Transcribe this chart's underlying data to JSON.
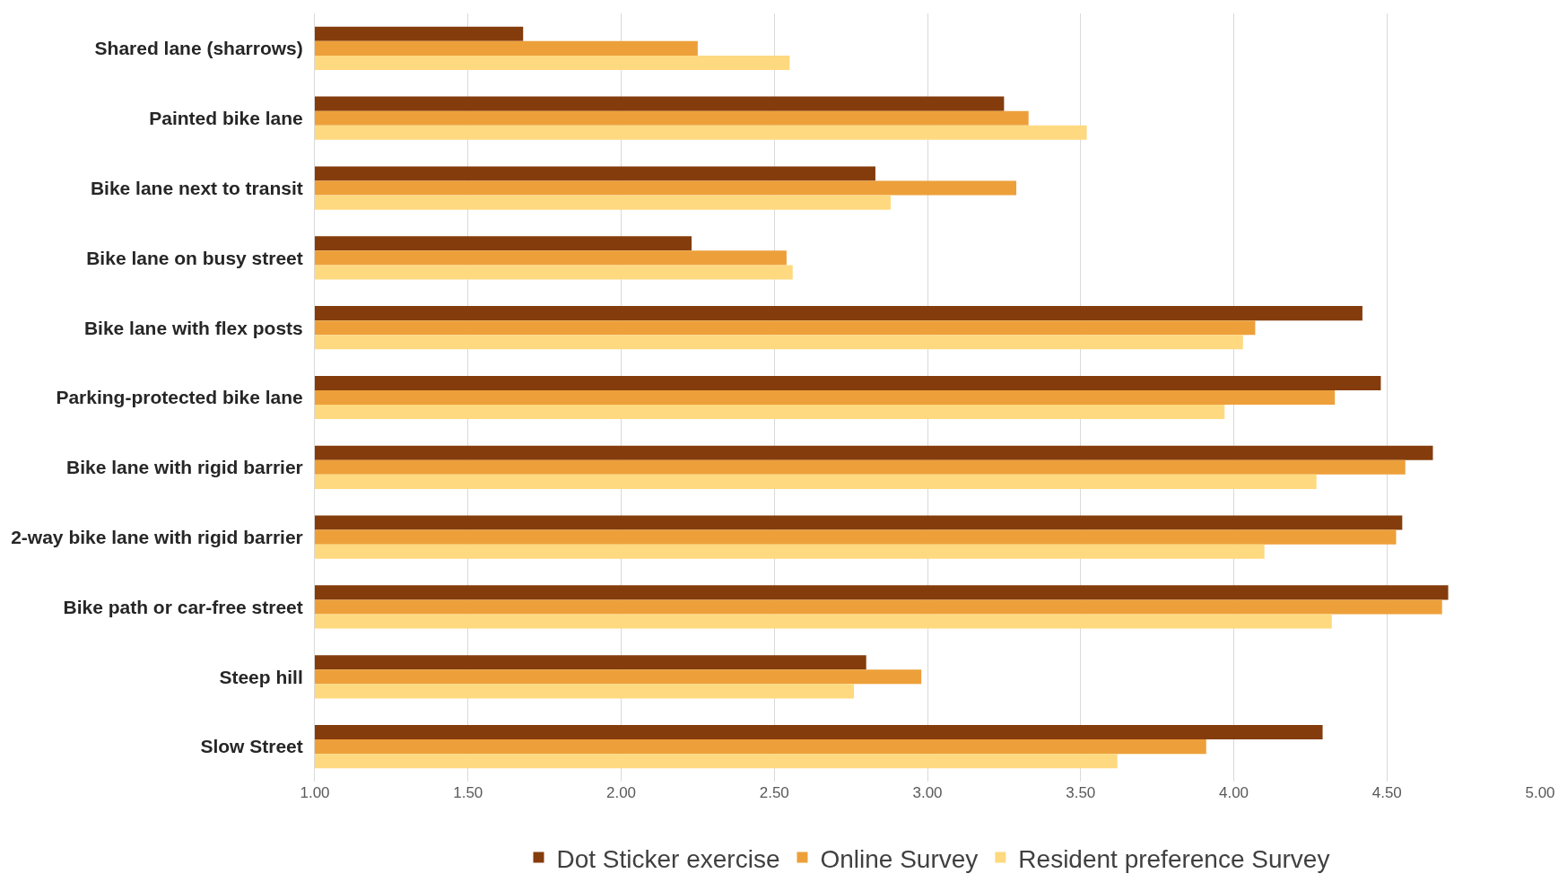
{
  "chart_data": {
    "type": "bar",
    "orientation": "horizontal",
    "categories": [
      "Shared lane (sharrows)",
      "Painted bike lane",
      "Bike lane next to transit",
      "Bike lane on busy street",
      "Bike lane with flex posts",
      "Parking-protected bike lane",
      "Bike lane with rigid barrier",
      "2-way bike lane with rigid barrier",
      "Bike path or car-free street",
      "Steep hill",
      "Slow Street"
    ],
    "series": [
      {
        "name": "Dot Sticker exercise",
        "color": "#843c0c",
        "values": [
          1.68,
          3.25,
          2.83,
          2.23,
          4.42,
          4.48,
          4.65,
          4.55,
          4.7,
          2.8,
          4.29
        ]
      },
      {
        "name": "Online Survey",
        "color": "#eda03a",
        "values": [
          2.25,
          3.33,
          3.29,
          2.54,
          4.07,
          4.33,
          4.56,
          4.53,
          4.68,
          2.98,
          3.91
        ]
      },
      {
        "name": "Resident preference Survey",
        "color": "#ffd97f",
        "values": [
          2.55,
          3.52,
          2.88,
          2.56,
          4.03,
          3.97,
          4.27,
          4.1,
          4.32,
          2.76,
          3.62
        ]
      }
    ],
    "xlim": [
      1,
      5
    ],
    "xticks": [
      {
        "value": 1,
        "label": "1.00"
      },
      {
        "value": 1.5,
        "label": "1.50"
      },
      {
        "value": 2,
        "label": "2.00"
      },
      {
        "value": 2.5,
        "label": "2.50"
      },
      {
        "value": 3,
        "label": "3.00"
      },
      {
        "value": 3.5,
        "label": "3.50"
      },
      {
        "value": 4,
        "label": "4.00"
      },
      {
        "value": 4.5,
        "label": "4.50"
      },
      {
        "value": 5,
        "label": "5.00"
      }
    ],
    "grid": "x",
    "legend": "bottom"
  }
}
